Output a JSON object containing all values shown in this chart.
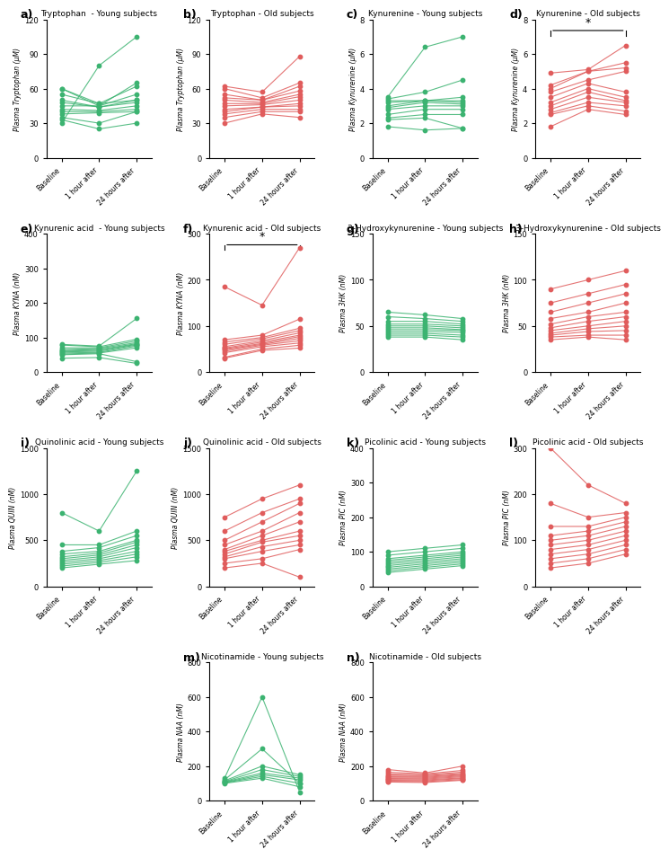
{
  "green_color": "#2ecc71",
  "red_color": "#e74c3c",
  "green_dark": "#27ae60",
  "red_dark": "#c0392b",
  "x_labels": [
    "Baseline",
    "1 hour after",
    "24 hours after"
  ],
  "panels": [
    {
      "label": "a)",
      "title": "Tryptophan  - Young subjects",
      "ylabel": "Plasma Tryptophan (μM)",
      "color": "green",
      "ylim": [
        0,
        120
      ],
      "yticks": [
        0,
        30,
        60,
        90,
        120
      ],
      "data": [
        [
          45,
          45,
          65
        ],
        [
          60,
          47,
          62
        ],
        [
          60,
          45,
          55
        ],
        [
          55,
          47,
          50
        ],
        [
          50,
          44,
          50
        ],
        [
          48,
          44,
          48
        ],
        [
          42,
          41,
          45
        ],
        [
          40,
          40,
          42
        ],
        [
          38,
          39,
          40
        ],
        [
          35,
          30,
          40
        ],
        [
          33,
          25,
          30
        ],
        [
          30,
          80,
          105
        ]
      ],
      "sig_line": null
    },
    {
      "label": "b)",
      "title": "Tryptophan - Old subjects",
      "ylabel": "Plasma Tryptophan (μM)",
      "color": "red",
      "ylim": [
        0,
        120
      ],
      "yticks": [
        0,
        30,
        60,
        90,
        120
      ],
      "data": [
        [
          62,
          57,
          88
        ],
        [
          60,
          52,
          65
        ],
        [
          55,
          50,
          62
        ],
        [
          52,
          50,
          58
        ],
        [
          50,
          48,
          55
        ],
        [
          47,
          47,
          53
        ],
        [
          45,
          46,
          50
        ],
        [
          42,
          44,
          47
        ],
        [
          40,
          44,
          45
        ],
        [
          38,
          42,
          42
        ],
        [
          35,
          40,
          40
        ],
        [
          30,
          38,
          35
        ]
      ],
      "sig_line": null
    },
    {
      "label": "c)",
      "title": "Kynurenine - Young subjects",
      "ylabel": "Plasma Kynurenine (μM)",
      "color": "green",
      "ylim": [
        0,
        8
      ],
      "yticks": [
        0,
        2,
        4,
        6,
        8
      ],
      "data": [
        [
          3.5,
          6.4,
          7.0
        ],
        [
          3.4,
          3.8,
          4.5
        ],
        [
          3.3,
          3.3,
          3.5
        ],
        [
          3.2,
          3.3,
          3.3
        ],
        [
          3.0,
          3.3,
          3.2
        ],
        [
          2.9,
          3.2,
          3.1
        ],
        [
          2.8,
          3.0,
          3.0
        ],
        [
          2.5,
          2.8,
          2.8
        ],
        [
          2.3,
          2.5,
          2.5
        ],
        [
          2.2,
          2.3,
          1.7
        ],
        [
          1.8,
          1.6,
          1.7
        ]
      ],
      "sig_line": null
    },
    {
      "label": "d)",
      "title": "Kynurenine - Old subjects",
      "ylabel": "Plasma Kynurenine (μM)",
      "color": "red",
      "ylim": [
        0,
        8
      ],
      "yticks": [
        0,
        2,
        4,
        6,
        8
      ],
      "data": [
        [
          4.9,
          5.1,
          6.5
        ],
        [
          4.2,
          5.0,
          5.5
        ],
        [
          4.0,
          5.0,
          5.2
        ],
        [
          3.8,
          4.5,
          5.0
        ],
        [
          3.5,
          4.3,
          3.8
        ],
        [
          3.2,
          4.0,
          3.5
        ],
        [
          3.0,
          3.8,
          3.3
        ],
        [
          2.8,
          3.5,
          3.2
        ],
        [
          2.6,
          3.2,
          3.0
        ],
        [
          2.5,
          3.0,
          2.7
        ],
        [
          1.8,
          2.8,
          2.5
        ]
      ],
      "sig_line": [
        0,
        2
      ]
    },
    {
      "label": "e)",
      "title": "Kynurenic acid  - Young subjects",
      "ylabel": "Plasma KYNA (nM)",
      "color": "green",
      "ylim": [
        0,
        400
      ],
      "yticks": [
        0,
        100,
        200,
        300,
        400
      ],
      "data": [
        [
          80,
          75,
          155
        ],
        [
          78,
          73,
          95
        ],
        [
          70,
          70,
          90
        ],
        [
          65,
          68,
          85
        ],
        [
          62,
          65,
          82
        ],
        [
          60,
          63,
          80
        ],
        [
          58,
          60,
          78
        ],
        [
          55,
          57,
          75
        ],
        [
          52,
          55,
          70
        ],
        [
          50,
          53,
          30
        ],
        [
          40,
          42,
          25
        ]
      ],
      "sig_line": null
    },
    {
      "label": "f)",
      "title": "Kynurenic acid - Old subjects",
      "ylabel": "Plasma KYNA (nM)",
      "color": "red",
      "ylim": [
        0,
        300
      ],
      "yticks": [
        0,
        100,
        200,
        300
      ],
      "data": [
        [
          185,
          145,
          270
        ],
        [
          70,
          80,
          115
        ],
        [
          65,
          75,
          95
        ],
        [
          60,
          72,
          90
        ],
        [
          55,
          68,
          85
        ],
        [
          52,
          65,
          80
        ],
        [
          50,
          62,
          77
        ],
        [
          48,
          60,
          73
        ],
        [
          45,
          58,
          68
        ],
        [
          42,
          55,
          63
        ],
        [
          32,
          50,
          58
        ],
        [
          30,
          47,
          52
        ]
      ],
      "sig_line": [
        0,
        2
      ]
    },
    {
      "label": "g)",
      "title": "3-Hydroxykynurenine - Young subjects",
      "ylabel": "Plasma 3HK (nM)",
      "color": "green",
      "ylim": [
        0,
        150
      ],
      "yticks": [
        0,
        50,
        100,
        150
      ],
      "data": [
        [
          65,
          62,
          58
        ],
        [
          60,
          58,
          55
        ],
        [
          55,
          55,
          52
        ],
        [
          52,
          52,
          50
        ],
        [
          50,
          50,
          48
        ],
        [
          48,
          48,
          46
        ],
        [
          46,
          46,
          45
        ],
        [
          44,
          44,
          43
        ],
        [
          42,
          42,
          40
        ],
        [
          40,
          40,
          38
        ],
        [
          38,
          38,
          35
        ]
      ],
      "sig_line": null
    },
    {
      "label": "h)",
      "title": "3-Hydroxykynurenine - Old subjects",
      "ylabel": "Plasma 3HK (nM)",
      "color": "red",
      "ylim": [
        0,
        150
      ],
      "yticks": [
        0,
        50,
        100,
        150
      ],
      "data": [
        [
          90,
          100,
          110
        ],
        [
          75,
          85,
          95
        ],
        [
          65,
          75,
          85
        ],
        [
          58,
          65,
          75
        ],
        [
          52,
          60,
          65
        ],
        [
          48,
          55,
          60
        ],
        [
          45,
          50,
          55
        ],
        [
          42,
          47,
          50
        ],
        [
          40,
          44,
          45
        ],
        [
          38,
          40,
          40
        ],
        [
          35,
          38,
          35
        ]
      ],
      "sig_line": null
    },
    {
      "label": "i)",
      "title": "Quinolinic acid - Young subjects",
      "ylabel": "Plasma QUIN (nM)",
      "color": "green",
      "ylim": [
        0,
        1500
      ],
      "yticks": [
        0,
        500,
        1000,
        1500
      ],
      "data": [
        [
          800,
          600,
          1250
        ],
        [
          450,
          450,
          600
        ],
        [
          380,
          420,
          550
        ],
        [
          350,
          380,
          500
        ],
        [
          320,
          360,
          480
        ],
        [
          300,
          340,
          450
        ],
        [
          280,
          320,
          420
        ],
        [
          260,
          300,
          380
        ],
        [
          240,
          280,
          350
        ],
        [
          220,
          260,
          320
        ],
        [
          200,
          240,
          280
        ]
      ],
      "sig_line": null
    },
    {
      "label": "j)",
      "title": "Quinolinic acid - Old subjects",
      "ylabel": "Plasma QUIN (nM)",
      "color": "red",
      "ylim": [
        0,
        1500
      ],
      "yticks": [
        0,
        500,
        1000,
        1500
      ],
      "data": [
        [
          750,
          950,
          1100
        ],
        [
          600,
          800,
          950
        ],
        [
          500,
          700,
          900
        ],
        [
          450,
          600,
          800
        ],
        [
          400,
          550,
          700
        ],
        [
          380,
          500,
          600
        ],
        [
          350,
          480,
          550
        ],
        [
          320,
          430,
          500
        ],
        [
          300,
          380,
          450
        ],
        [
          250,
          300,
          400
        ],
        [
          200,
          250,
          100
        ]
      ],
      "sig_line": null
    },
    {
      "label": "k)",
      "title": "Picolinic acid - Young subjects",
      "ylabel": "Plasma PIC (nM)",
      "color": "green",
      "ylim": [
        0,
        400
      ],
      "yticks": [
        0,
        100,
        200,
        300,
        400
      ],
      "data": [
        [
          100,
          110,
          120
        ],
        [
          90,
          100,
          110
        ],
        [
          80,
          90,
          100
        ],
        [
          75,
          85,
          95
        ],
        [
          70,
          80,
          90
        ],
        [
          65,
          75,
          85
        ],
        [
          60,
          70,
          80
        ],
        [
          55,
          65,
          75
        ],
        [
          50,
          60,
          70
        ],
        [
          45,
          55,
          65
        ],
        [
          40,
          50,
          60
        ]
      ],
      "sig_line": null
    },
    {
      "label": "l)",
      "title": "Picolinic acid - Old subjects",
      "ylabel": "Plasma PIC (nM)",
      "color": "red",
      "ylim": [
        0,
        300
      ],
      "yticks": [
        0,
        100,
        200,
        300
      ],
      "data": [
        [
          300,
          220,
          180
        ],
        [
          180,
          150,
          160
        ],
        [
          130,
          130,
          150
        ],
        [
          110,
          120,
          140
        ],
        [
          100,
          110,
          130
        ],
        [
          90,
          100,
          120
        ],
        [
          80,
          90,
          110
        ],
        [
          70,
          80,
          100
        ],
        [
          60,
          70,
          90
        ],
        [
          50,
          60,
          80
        ],
        [
          40,
          50,
          70
        ]
      ],
      "sig_line": null
    },
    {
      "label": "m)",
      "title": "Nicotinamide - Young subjects",
      "ylabel": "Plasma NAA (nM)",
      "color": "green",
      "ylim": [
        0,
        800
      ],
      "yticks": [
        0,
        200,
        400,
        600,
        800
      ],
      "data": [
        [
          130,
          600,
          50
        ],
        [
          120,
          300,
          100
        ],
        [
          115,
          200,
          150
        ],
        [
          110,
          180,
          140
        ],
        [
          108,
          160,
          130
        ],
        [
          105,
          150,
          120
        ],
        [
          103,
          140,
          100
        ],
        [
          100,
          130,
          80
        ]
      ],
      "sig_line": null
    },
    {
      "label": "n)",
      "title": "Nicotinamide - Old subjects",
      "ylabel": "Plasma NAA (nM)",
      "color": "red",
      "ylim": [
        0,
        800
      ],
      "yticks": [
        0,
        200,
        400,
        600,
        800
      ],
      "data": [
        [
          180,
          160,
          200
        ],
        [
          165,
          155,
          175
        ],
        [
          155,
          150,
          165
        ],
        [
          148,
          145,
          158
        ],
        [
          142,
          140,
          152
        ],
        [
          138,
          135,
          148
        ],
        [
          132,
          130,
          143
        ],
        [
          128,
          125,
          138
        ],
        [
          122,
          120,
          132
        ],
        [
          118,
          115,
          128
        ],
        [
          112,
          110,
          122
        ],
        [
          108,
          105,
          118
        ]
      ],
      "sig_line": null
    }
  ]
}
